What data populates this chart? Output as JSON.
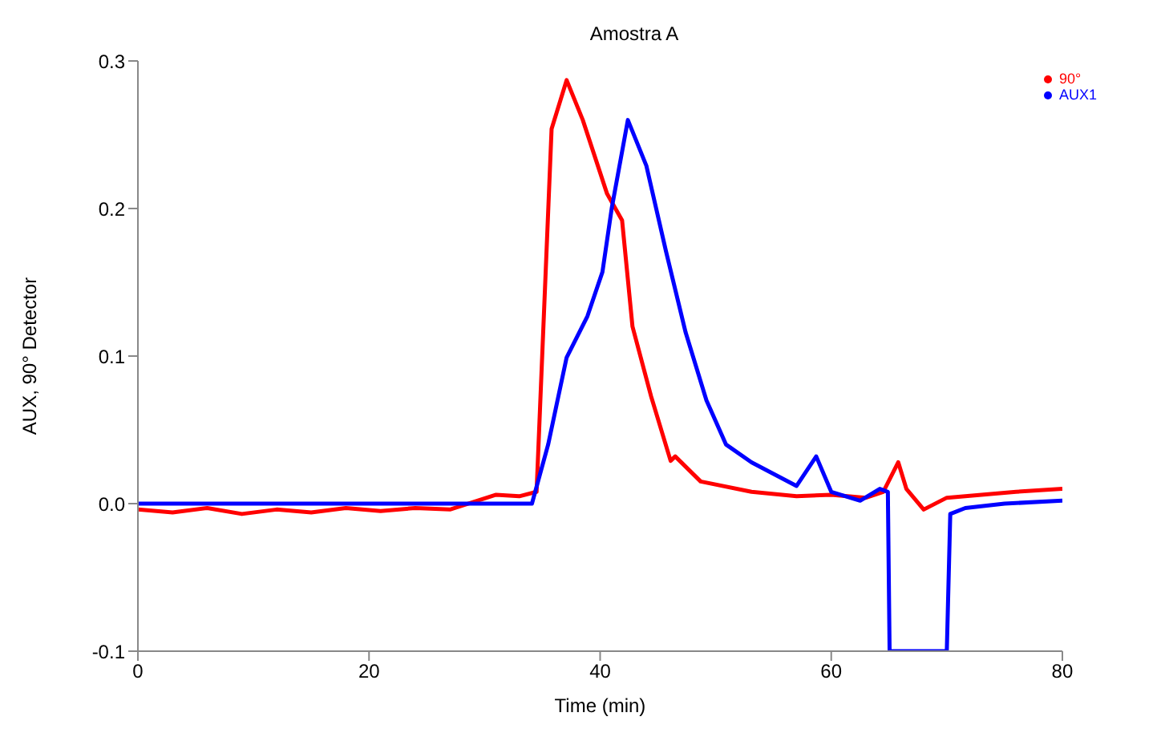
{
  "chart_data": {
    "type": "line",
    "title": "Amostra A",
    "xlabel": "Time (min)",
    "ylabel": "AUX, 90° Detector",
    "xlim": [
      0,
      80
    ],
    "ylim": [
      -0.1,
      0.3
    ],
    "xticks": [
      0,
      20,
      40,
      60,
      80
    ],
    "yticks": [
      {
        "value": -0.1,
        "label": "-0.1"
      },
      {
        "value": 0,
        "label": "0.0"
      },
      {
        "value": 0.1,
        "label": "0.1"
      },
      {
        "value": 0.2,
        "label": "0.2"
      },
      {
        "value": 0.3,
        "label": "0.3"
      }
    ],
    "grid": false,
    "legend": "top right",
    "marker": "none",
    "line_style": "solid",
    "series": [
      {
        "name": "90°",
        "color": "#ff0000",
        "x": [
          0,
          3,
          6,
          9,
          12,
          15,
          18,
          21,
          24,
          27,
          29,
          31,
          33,
          34.5,
          35.8,
          37.1,
          38.5,
          40.6,
          41.9,
          42.8,
          44.4,
          46.1,
          46.5,
          48.7,
          53.1,
          57,
          60,
          63,
          64.5,
          65.8,
          66.5,
          68,
          70,
          73,
          76,
          80
        ],
        "values": [
          -0.004,
          -0.006,
          -0.003,
          -0.007,
          -0.004,
          -0.006,
          -0.003,
          -0.005,
          -0.003,
          -0.004,
          0.001,
          0.006,
          0.005,
          0.008,
          0.254,
          0.287,
          0.26,
          0.21,
          0.192,
          0.12,
          0.073,
          0.029,
          0.032,
          0.015,
          0.008,
          0.005,
          0.006,
          0.004,
          0.008,
          0.028,
          0.01,
          -0.004,
          0.004,
          0.006,
          0.008,
          0.01
        ]
      },
      {
        "name": "AUX1",
        "color": "#0000ff",
        "x": [
          0,
          10,
          20,
          30,
          34.1,
          35.5,
          37.1,
          38.9,
          40.2,
          41,
          42.4,
          44,
          45.7,
          47.4,
          49.2,
          50.9,
          53.1,
          57,
          58.7,
          60,
          62.5,
          64.2,
          64.9,
          65.05,
          70,
          70.3,
          71.6,
          75,
          80
        ],
        "values": [
          0,
          0,
          0,
          0,
          0,
          0.04,
          0.099,
          0.127,
          0.157,
          0.2,
          0.26,
          0.229,
          0.171,
          0.116,
          0.07,
          0.04,
          0.028,
          0.012,
          0.032,
          0.008,
          0.002,
          0.01,
          0.008,
          -0.1,
          -0.1,
          -0.007,
          -0.003,
          0,
          0.002
        ]
      }
    ]
  }
}
